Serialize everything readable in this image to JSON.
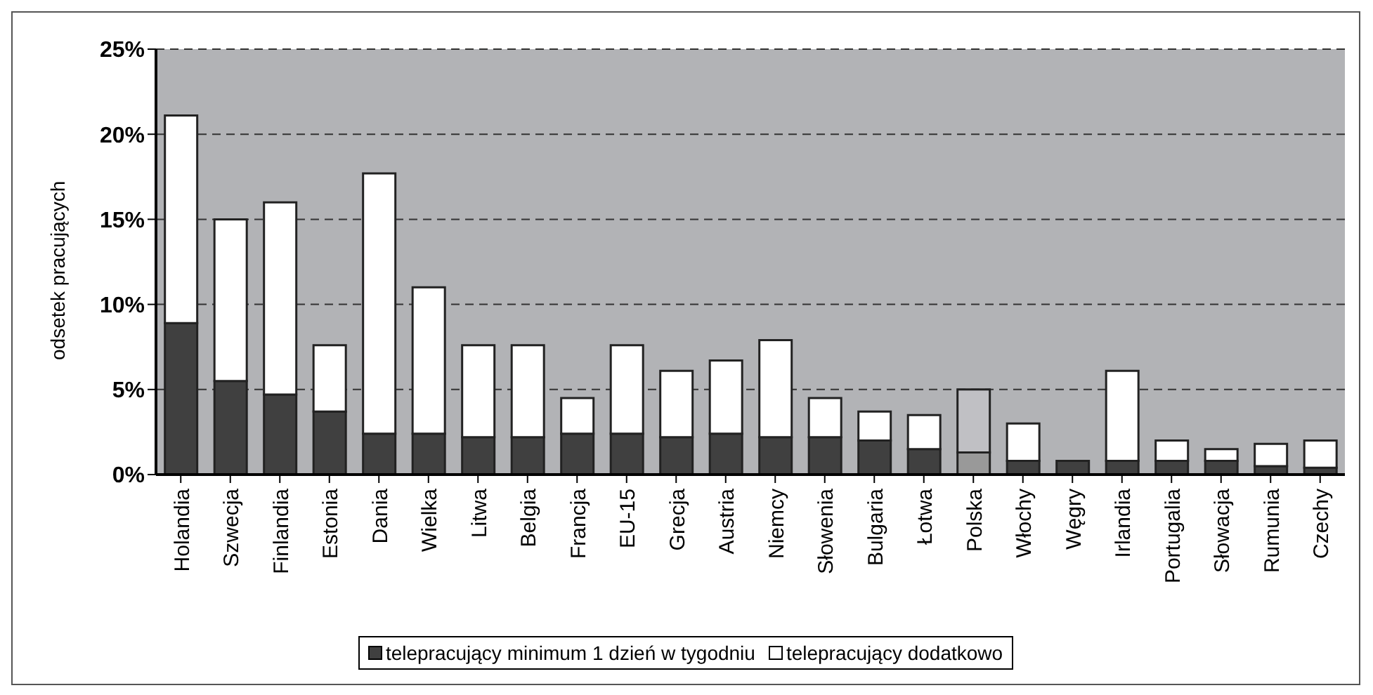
{
  "chart_data": {
    "type": "bar",
    "stacked": true,
    "ylabel": "odsetek pracujących",
    "categories": [
      "Holandia",
      "Szwecja",
      "Finlandia",
      "Estonia",
      "Dania",
      "Wielka",
      "Litwa",
      "Belgia",
      "Francja",
      "EU-15",
      "Grecja",
      "Austria",
      "Niemcy",
      "Słowenia",
      "Bulgaria",
      "Łotwa",
      "Polska",
      "Włochy",
      "Węgry",
      "Irlandia",
      "Portugalia",
      "Słowacja",
      "Rumunia",
      "Czechy"
    ],
    "series": [
      {
        "name": "telepracujący minimum 1 dzień w tygodniu",
        "color": "#404040",
        "colors": [
          "#404040",
          "#404040",
          "#404040",
          "#404040",
          "#404040",
          "#404040",
          "#404040",
          "#404040",
          "#404040",
          "#404040",
          "#404040",
          "#404040",
          "#404040",
          "#404040",
          "#404040",
          "#404040",
          "#999999",
          "#404040",
          "#404040",
          "#404040",
          "#404040",
          "#404040",
          "#404040",
          "#404040"
        ],
        "values": [
          8.9,
          5.5,
          4.7,
          3.7,
          2.4,
          2.4,
          2.2,
          2.2,
          2.4,
          2.4,
          2.2,
          2.4,
          2.2,
          2.2,
          2.0,
          1.5,
          1.3,
          0.8,
          0.8,
          0.8,
          0.8,
          0.8,
          0.5,
          0.4
        ]
      },
      {
        "name": "telepracujący dodatkowo",
        "color": "#ffffff",
        "colors": [
          "#ffffff",
          "#ffffff",
          "#ffffff",
          "#ffffff",
          "#ffffff",
          "#ffffff",
          "#ffffff",
          "#ffffff",
          "#ffffff",
          "#ffffff",
          "#ffffff",
          "#ffffff",
          "#ffffff",
          "#ffffff",
          "#ffffff",
          "#ffffff",
          "#c0c0c4",
          "#ffffff",
          "#ffffff",
          "#ffffff",
          "#ffffff",
          "#ffffff",
          "#ffffff",
          "#ffffff"
        ],
        "values": [
          12.2,
          9.5,
          11.3,
          3.9,
          15.3,
          8.6,
          5.4,
          5.4,
          2.1,
          5.2,
          3.9,
          4.3,
          5.7,
          2.3,
          1.7,
          2.0,
          3.7,
          2.2,
          0,
          5.3,
          1.2,
          0.7,
          1.3,
          1.6
        ]
      }
    ],
    "ylim": [
      0,
      25
    ],
    "yticks": [
      {
        "value": 0,
        "label": "0%"
      },
      {
        "value": 5,
        "label": "5%"
      },
      {
        "value": 10,
        "label": "10%"
      },
      {
        "value": 15,
        "label": "15%"
      },
      {
        "value": 20,
        "label": "20%"
      },
      {
        "value": 25,
        "label": "25%"
      }
    ],
    "grid": "y",
    "legend": "bottom"
  }
}
